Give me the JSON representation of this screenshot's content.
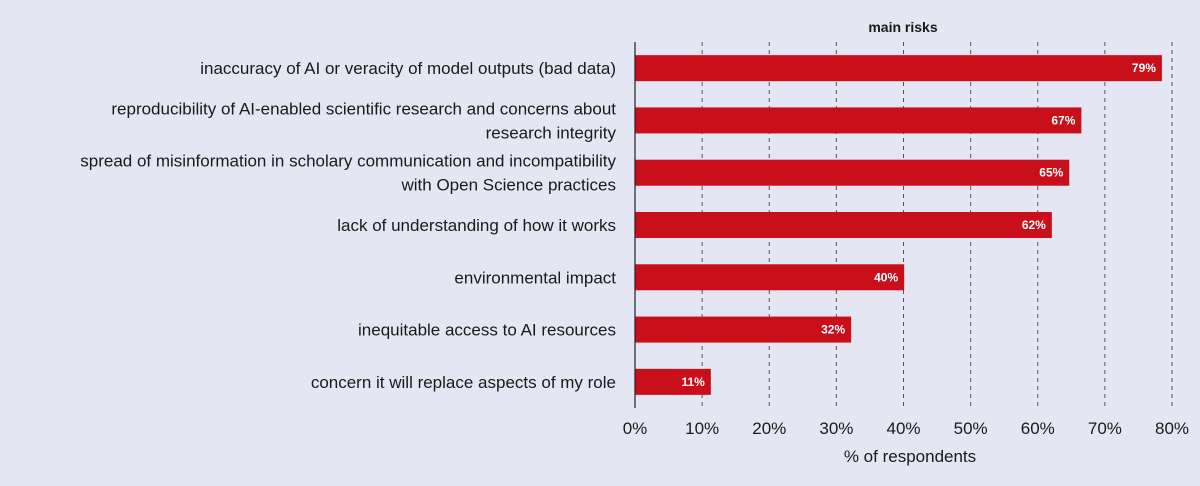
{
  "chart_data": {
    "type": "bar",
    "orientation": "horizontal",
    "title": "main risks",
    "xlabel": "% of respondents",
    "ylabel": "",
    "xlim": [
      0,
      80
    ],
    "xticks": [
      0,
      10,
      20,
      30,
      40,
      50,
      60,
      70,
      80
    ],
    "xtick_labels": [
      "0%",
      "10%",
      "20%",
      "30%",
      "40%",
      "50%",
      "60%",
      "70%",
      "80%"
    ],
    "grid": "vertical dashed",
    "bar_color": "#c80f1a",
    "categories": [
      [
        "inaccuracy of AI or veracity of model outputs (bad data)"
      ],
      [
        "reproducibility of AI-enabled scientific research and concerns about",
        "research integrity"
      ],
      [
        "spread of misinformation in scholary communication and incompatibility",
        "with Open Science practices"
      ],
      [
        "lack of understanding of how it works"
      ],
      [
        "environmental impact"
      ],
      [
        "inequitable access to AI resources"
      ],
      [
        "concern it will replace aspects of my role"
      ]
    ],
    "values": [
      78.5,
      66.5,
      64.7,
      62.1,
      40.1,
      32.2,
      11.3
    ],
    "data_labels": [
      "79%",
      "67%",
      "65%",
      "62%",
      "40%",
      "32%",
      "11%"
    ]
  }
}
